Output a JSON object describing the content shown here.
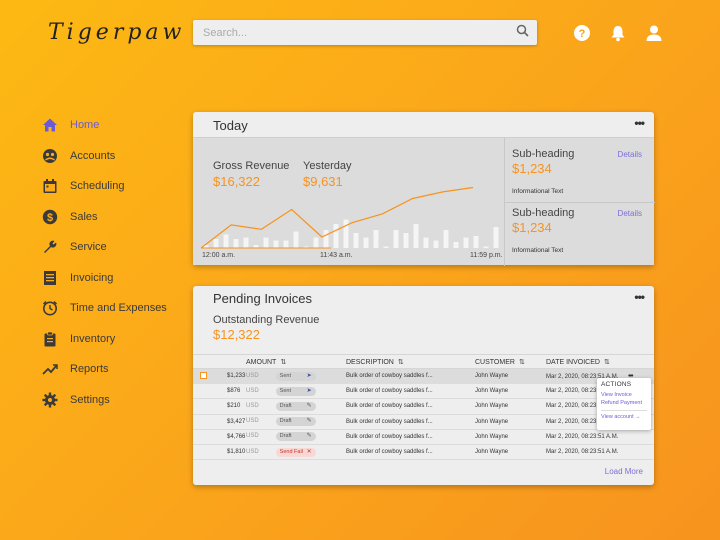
{
  "app": {
    "logo": "Tigerpaw"
  },
  "search": {
    "placeholder": "Search..."
  },
  "header_icons": [
    "help-icon",
    "bell-icon",
    "user-icon"
  ],
  "sidebar": {
    "items": [
      {
        "label": "Home",
        "icon": "home-icon",
        "active": true
      },
      {
        "label": "Accounts",
        "icon": "accounts-icon"
      },
      {
        "label": "Scheduling",
        "icon": "calendar-icon"
      },
      {
        "label": "Sales",
        "icon": "dollar-icon"
      },
      {
        "label": "Service",
        "icon": "wrench-icon"
      },
      {
        "label": "Invoicing",
        "icon": "invoice-icon"
      },
      {
        "label": "Time and Expenses",
        "icon": "clock-icon"
      },
      {
        "label": "Inventory",
        "icon": "clipboard-icon"
      },
      {
        "label": "Reports",
        "icon": "trend-icon"
      },
      {
        "label": "Settings",
        "icon": "gear-icon"
      }
    ]
  },
  "today": {
    "title": "Today",
    "more": "•••",
    "gross_label": "Gross Revenue",
    "gross_value": "$16,322",
    "yesterday_label": "Yesterday",
    "yesterday_value": "$9,631",
    "x_labels": [
      "12:00 a.m.",
      "11:43 a.m.",
      "11:59 p.m."
    ],
    "subs": [
      {
        "heading": "Sub-heading",
        "value": "$1,234",
        "details": "Details",
        "info": "Informational Text"
      },
      {
        "heading": "Sub-heading",
        "value": "$1,234",
        "details": "Details",
        "info": "Informational Text"
      }
    ]
  },
  "chart_data": {
    "type": "line",
    "series": [
      {
        "values": [
          2,
          6,
          9,
          6,
          7,
          2,
          7,
          5,
          5,
          11,
          1,
          7,
          12,
          16,
          19,
          10,
          7,
          12,
          1,
          12,
          10,
          16,
          7,
          5,
          12,
          4,
          7,
          8,
          1,
          14
        ]
      },
      {
        "values": [
          0,
          2.1,
          1.7,
          3.5,
          1,
          2.3,
          3.1,
          4.5,
          5.1,
          5.5
        ]
      }
    ],
    "colors": {
      "bars": "#f5f5f5",
      "line": "#f7931e"
    }
  },
  "pending": {
    "title": "Pending Invoices",
    "more": "•••",
    "outstanding_label": "Outstanding Revenue",
    "outstanding_value": "$12,322",
    "columns": {
      "amount": "AMOUNT",
      "description": "DESCRIPTION",
      "customer": "CUSTOMER",
      "date": "DATE INVOICED"
    },
    "rows": [
      {
        "amount": "$1,233",
        "currency": "USD",
        "status": "Sent",
        "status_icon": "➤",
        "description": "Bulk order of cowboy saddles f...",
        "customer": "John Wayne",
        "date": "Mar 2, 2020, 08:23:51 A.M."
      },
      {
        "amount": "$876",
        "currency": "USD",
        "status": "Sent",
        "status_icon": "➤",
        "description": "Bulk order of cowboy saddles f...",
        "customer": "John Wayne",
        "date": "Mar 2, 2020, 08:23:51 A.M."
      },
      {
        "amount": "$210",
        "currency": "USD",
        "status": "Draft",
        "status_icon": "✎",
        "description": "Bulk order of cowboy saddles f...",
        "customer": "John Wayne",
        "date": "Mar 2, 2020, 08:23:51 A.M."
      },
      {
        "amount": "$3,427",
        "currency": "USD",
        "status": "Draft",
        "status_icon": "✎",
        "description": "Bulk order of cowboy saddles f...",
        "customer": "John Wayne",
        "date": "Mar 2, 2020, 08:23:51 A.M."
      },
      {
        "amount": "$4,766",
        "currency": "USD",
        "status": "Draft",
        "status_icon": "✎",
        "description": "Bulk order of cowboy saddles f...",
        "customer": "John Wayne",
        "date": "Mar 2, 2020, 08:23:51 A.M."
      },
      {
        "amount": "$1,810",
        "currency": "USD",
        "status": "Send Fail",
        "status_icon": "✕",
        "description": "Bulk order of cowboy saddles f...",
        "customer": "John Wayne",
        "date": "Mar 2, 2020, 08:23:51 A.M."
      }
    ],
    "row_more": "•••",
    "actions": {
      "heading": "ACTIONS",
      "view_invoice": "View Invoice",
      "refund_payment": "Refund Payment",
      "view_account": "View account →"
    },
    "load_more": "Load More"
  },
  "colors": {
    "accent": "#f7931e",
    "link": "#7b6fd8",
    "active_nav": "#6b5bd6",
    "background_start": "#fdb913",
    "background_end": "#f7931e"
  }
}
